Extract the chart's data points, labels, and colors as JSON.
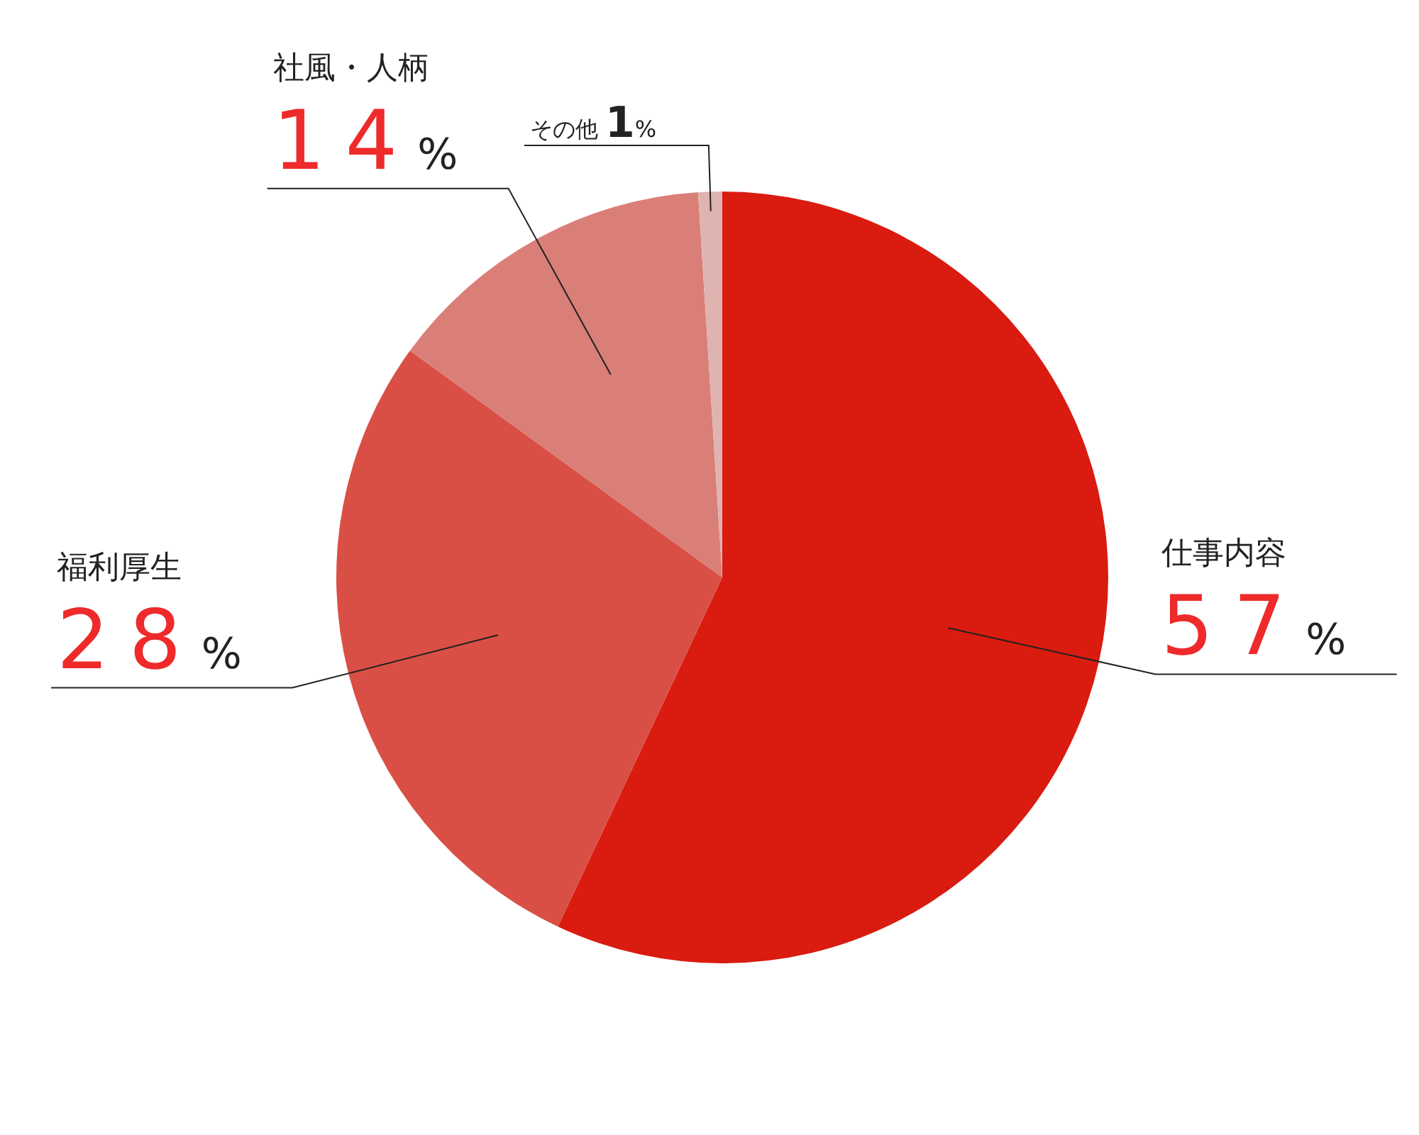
{
  "chart_data": {
    "type": "pie",
    "categories": [
      "仕事内容",
      "福利厚生",
      "社風・人柄",
      "その他"
    ],
    "values": [
      57,
      28,
      14,
      1
    ],
    "colors": [
      "#d91b10",
      "#d94f45",
      "#da7f78",
      "#dfb3b0"
    ],
    "value_labels": [
      "57%",
      "28%",
      "14%",
      "1%"
    ]
  }
}
